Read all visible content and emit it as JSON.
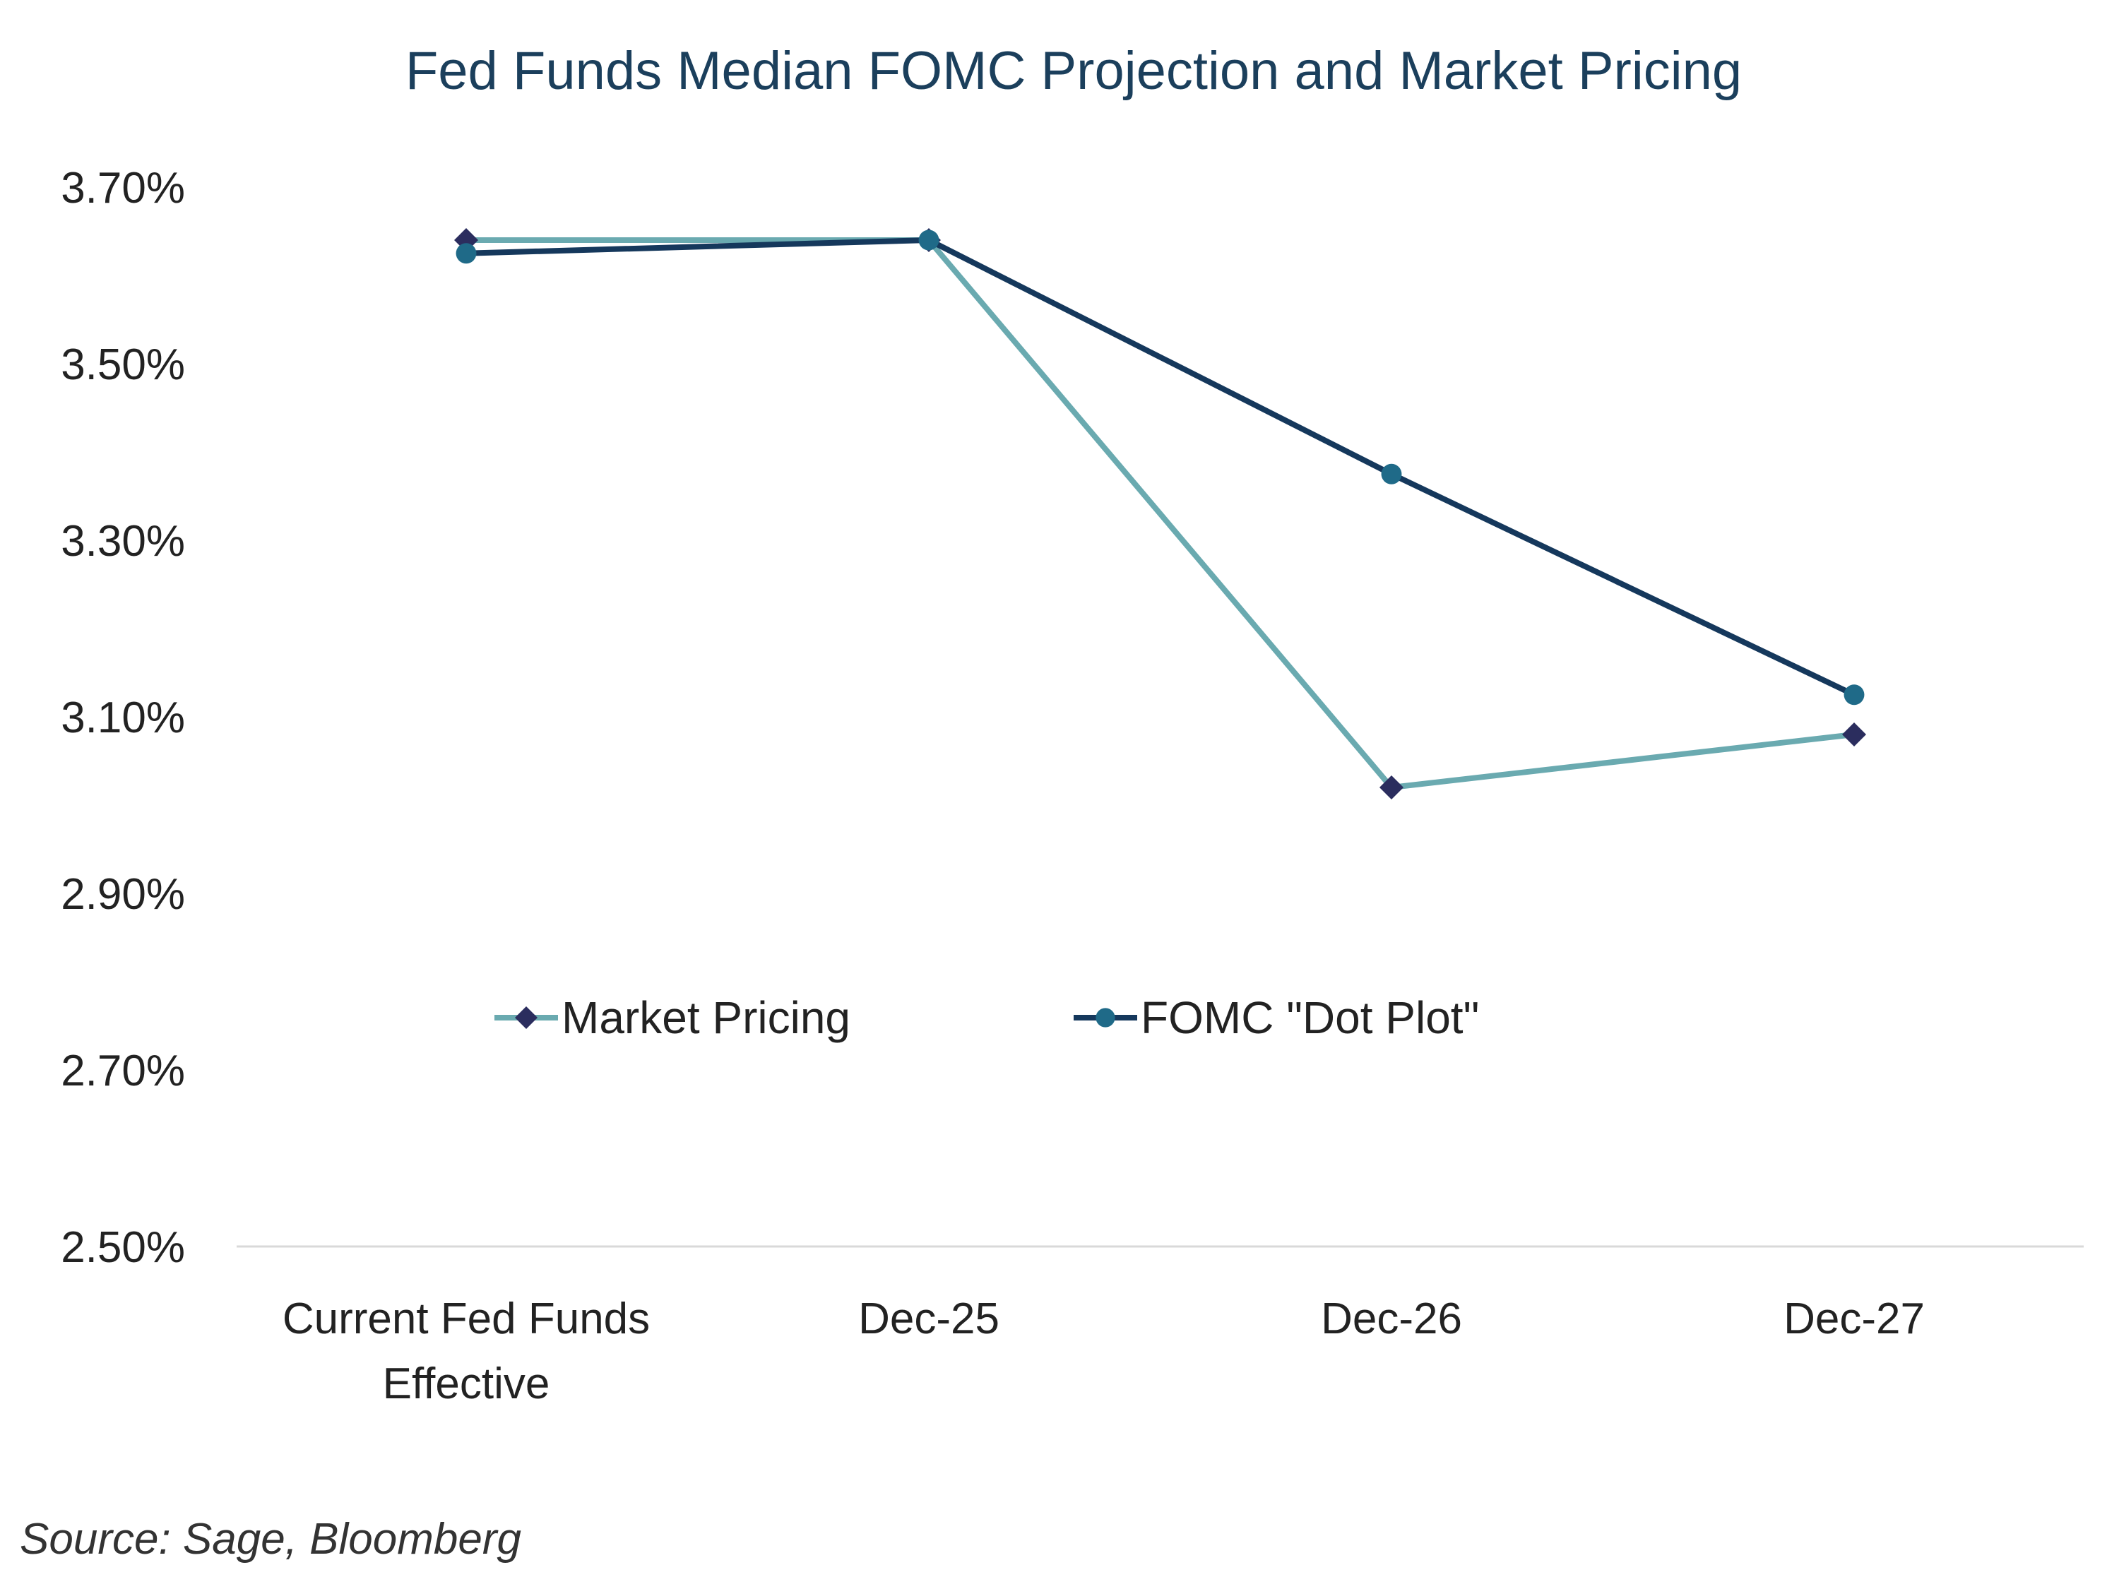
{
  "chart_data": {
    "type": "line",
    "title": "Fed Funds Median FOMC Projection and Market Pricing",
    "categories": [
      [
        "Current Fed Funds",
        "Effective"
      ],
      [
        "Dec-25"
      ],
      [
        "Dec-26"
      ],
      [
        "Dec-27"
      ]
    ],
    "y_ticks": [
      {
        "value": 2.5,
        "label": "2.50%"
      },
      {
        "value": 2.7,
        "label": "2.70%"
      },
      {
        "value": 2.9,
        "label": "2.90%"
      },
      {
        "value": 3.1,
        "label": "3.10%"
      },
      {
        "value": 3.3,
        "label": "3.30%"
      },
      {
        "value": 3.5,
        "label": "3.50%"
      },
      {
        "value": 3.7,
        "label": "3.70%"
      }
    ],
    "ylim": [
      2.5,
      3.7
    ],
    "xlabel": "",
    "ylabel": "",
    "grid": false,
    "legend_position": "center",
    "series": [
      {
        "name": "Market Pricing",
        "marker": "diamond",
        "line_color": "#6aaab0",
        "marker_color": "#2b2d5e",
        "values": [
          3.64,
          3.64,
          3.02,
          3.08
        ]
      },
      {
        "name": "FOMC \"Dot Plot\"",
        "marker": "circle",
        "line_color": "#15385c",
        "marker_color": "#1f6a88",
        "values": [
          3.625,
          3.64,
          3.375,
          3.125
        ]
      }
    ]
  },
  "source": "Source: Sage, Bloomberg",
  "colors": {
    "title": "#1b3f5c",
    "axis": "#d9d9d9"
  }
}
